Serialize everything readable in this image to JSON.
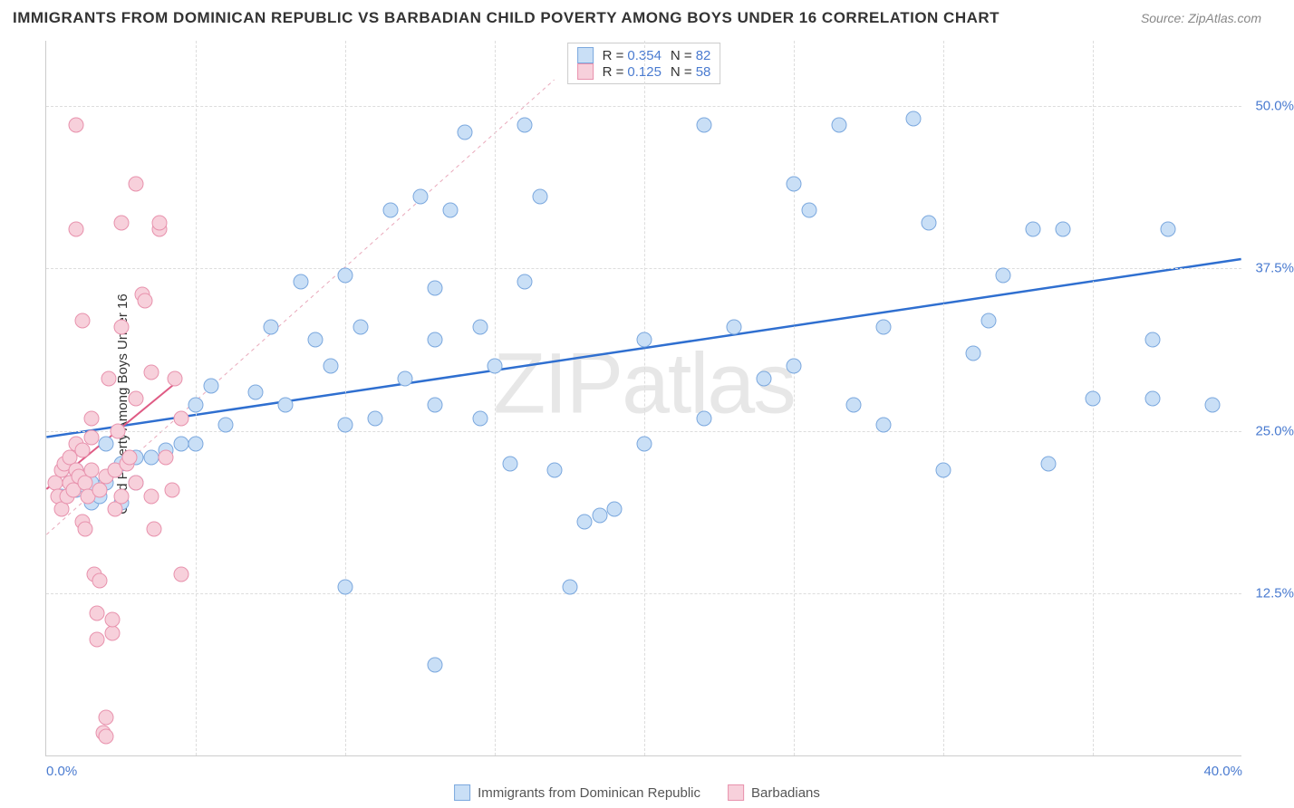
{
  "title": "IMMIGRANTS FROM DOMINICAN REPUBLIC VS BARBADIAN CHILD POVERTY AMONG BOYS UNDER 16 CORRELATION CHART",
  "source_label": "Source:",
  "source_name": "ZipAtlas.com",
  "ylabel": "Child Poverty Among Boys Under 16",
  "watermark": "ZIPatlas",
  "chart": {
    "type": "scatter",
    "xlim": [
      0,
      40
    ],
    "ylim": [
      0,
      55
    ],
    "xticks": [
      {
        "v": 0,
        "label": "0.0%"
      },
      {
        "v": 40,
        "label": "40.0%"
      }
    ],
    "yticks": [
      {
        "v": 12.5,
        "label": "12.5%"
      },
      {
        "v": 25,
        "label": "25.0%"
      },
      {
        "v": 37.5,
        "label": "37.5%"
      },
      {
        "v": 50,
        "label": "50.0%"
      }
    ],
    "xgrid": [
      5,
      10,
      15,
      20,
      25,
      30,
      35
    ],
    "grid_color": "#dddddd",
    "background": "#ffffff",
    "series": [
      {
        "name": "Immigrants from Dominican Republic",
        "color_fill": "#c9dff6",
        "color_stroke": "#7ba8de",
        "marker_size": 17,
        "R": "0.354",
        "N": "82",
        "trend": {
          "x1": 0,
          "y1": 24.5,
          "x2": 40,
          "y2": 38.2,
          "color": "#2f6fd0",
          "width": 2.5,
          "dash": "none"
        },
        "extrapolate": {
          "x1": 0,
          "y1": 17,
          "x2": 17,
          "y2": 52,
          "color": "#e9a9bb",
          "width": 1,
          "dash": "4 4"
        },
        "points": [
          [
            0.5,
            20
          ],
          [
            0.8,
            21
          ],
          [
            1,
            22
          ],
          [
            1,
            20.5
          ],
          [
            1.2,
            21.5
          ],
          [
            1.3,
            20.8
          ],
          [
            1.5,
            19.5
          ],
          [
            1.5,
            21
          ],
          [
            1.8,
            20
          ],
          [
            2,
            21
          ],
          [
            2,
            24
          ],
          [
            2.3,
            22
          ],
          [
            2.5,
            22.5
          ],
          [
            2.5,
            19.5
          ],
          [
            3,
            23
          ],
          [
            3,
            21
          ],
          [
            3.5,
            23
          ],
          [
            4,
            23.5
          ],
          [
            4.5,
            24
          ],
          [
            5,
            24
          ],
          [
            5,
            27
          ],
          [
            5.5,
            28.5
          ],
          [
            6,
            25.5
          ],
          [
            7,
            28
          ],
          [
            7.5,
            33
          ],
          [
            8,
            27
          ],
          [
            8.5,
            36.5
          ],
          [
            9,
            32
          ],
          [
            9.5,
            30
          ],
          [
            10,
            25.5
          ],
          [
            10,
            13
          ],
          [
            10,
            37
          ],
          [
            10.5,
            33
          ],
          [
            11,
            26
          ],
          [
            11.5,
            42
          ],
          [
            12,
            29
          ],
          [
            12.5,
            43
          ],
          [
            13,
            27
          ],
          [
            13,
            36
          ],
          [
            13,
            32
          ],
          [
            13,
            7
          ],
          [
            13.5,
            42
          ],
          [
            14,
            48
          ],
          [
            14.5,
            26
          ],
          [
            14.5,
            33
          ],
          [
            15,
            30
          ],
          [
            15.5,
            22.5
          ],
          [
            16,
            36.5
          ],
          [
            16,
            48.5
          ],
          [
            16.5,
            43
          ],
          [
            17,
            22
          ],
          [
            17.5,
            13
          ],
          [
            18,
            18
          ],
          [
            18.5,
            18.5
          ],
          [
            19,
            19
          ],
          [
            20,
            24
          ],
          [
            20,
            32
          ],
          [
            22,
            26
          ],
          [
            22,
            48.5
          ],
          [
            23,
            33
          ],
          [
            24,
            29
          ],
          [
            25,
            30
          ],
          [
            25,
            44
          ],
          [
            25.5,
            42
          ],
          [
            26.5,
            48.5
          ],
          [
            27,
            27
          ],
          [
            28,
            25.5
          ],
          [
            28,
            33
          ],
          [
            29,
            49
          ],
          [
            29.5,
            41
          ],
          [
            30,
            22
          ],
          [
            31,
            31
          ],
          [
            31.5,
            33.5
          ],
          [
            32,
            37
          ],
          [
            33,
            40.5
          ],
          [
            33.5,
            22.5
          ],
          [
            34,
            40.5
          ],
          [
            35,
            27.5
          ],
          [
            37,
            27.5
          ],
          [
            37.5,
            40.5
          ],
          [
            37,
            32
          ],
          [
            39,
            27
          ]
        ]
      },
      {
        "name": "Barbadians",
        "color_fill": "#f7d0db",
        "color_stroke": "#e892ad",
        "marker_size": 17,
        "R": "0.125",
        "N": "58",
        "trend": {
          "x1": 0,
          "y1": 20.5,
          "x2": 4.5,
          "y2": 29,
          "color": "#df5b84",
          "width": 2,
          "dash": "none"
        },
        "points": [
          [
            0.3,
            21
          ],
          [
            0.4,
            20
          ],
          [
            0.5,
            22
          ],
          [
            0.5,
            19
          ],
          [
            0.6,
            22.5
          ],
          [
            0.7,
            20
          ],
          [
            0.8,
            23
          ],
          [
            0.8,
            21
          ],
          [
            0.9,
            20.5
          ],
          [
            1,
            40.5
          ],
          [
            1,
            22
          ],
          [
            1,
            24
          ],
          [
            1.1,
            21.5
          ],
          [
            1.2,
            18
          ],
          [
            1.2,
            23.5
          ],
          [
            1.3,
            21
          ],
          [
            1.3,
            17.5
          ],
          [
            1.4,
            20
          ],
          [
            1.5,
            22
          ],
          [
            1.5,
            24.5
          ],
          [
            1.5,
            26
          ],
          [
            1.6,
            14
          ],
          [
            1.7,
            11
          ],
          [
            1.7,
            9
          ],
          [
            1.8,
            13.5
          ],
          [
            1.8,
            20.5
          ],
          [
            1.9,
            1.8
          ],
          [
            2,
            1.5
          ],
          [
            2,
            3
          ],
          [
            2,
            21.5
          ],
          [
            2.1,
            29
          ],
          [
            2.2,
            9.5
          ],
          [
            2.2,
            10.5
          ],
          [
            2.3,
            19
          ],
          [
            2.3,
            22
          ],
          [
            2.4,
            25
          ],
          [
            2.5,
            20
          ],
          [
            2.5,
            41
          ],
          [
            2.7,
            22.5
          ],
          [
            2.8,
            23
          ],
          [
            3,
            27.5
          ],
          [
            3,
            21
          ],
          [
            3,
            44
          ],
          [
            3.2,
            35.5
          ],
          [
            3.3,
            35
          ],
          [
            3.5,
            20
          ],
          [
            3.5,
            29.5
          ],
          [
            3.6,
            17.5
          ],
          [
            3.8,
            40.5
          ],
          [
            3.8,
            41
          ],
          [
            4,
            23
          ],
          [
            4.2,
            20.5
          ],
          [
            4.3,
            29
          ],
          [
            4.5,
            26
          ],
          [
            4.5,
            14
          ],
          [
            1,
            48.5
          ],
          [
            1.2,
            33.5
          ],
          [
            2.5,
            33
          ]
        ]
      }
    ]
  },
  "legend_bottom": [
    {
      "label": "Immigrants from Dominican Republic",
      "fill": "#c9dff6",
      "stroke": "#7ba8de"
    },
    {
      "label": "Barbadians",
      "fill": "#f7d0db",
      "stroke": "#e892ad"
    }
  ]
}
